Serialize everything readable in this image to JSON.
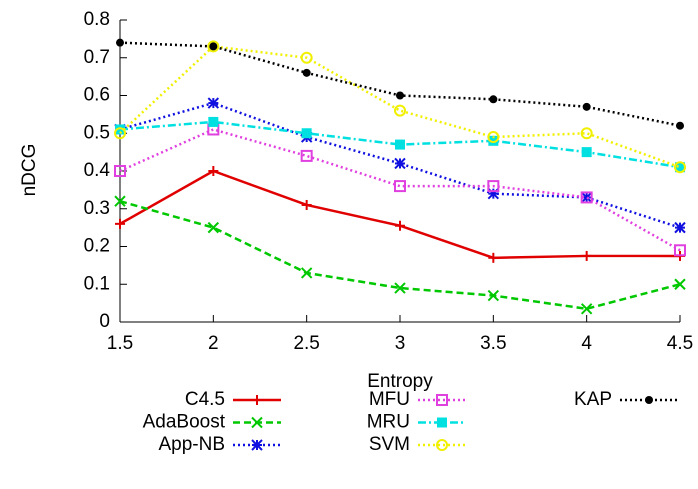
{
  "chart_data": {
    "type": "line",
    "x_label": "Entropy",
    "y_label": "nDCG",
    "x": [
      1.5,
      2,
      2.5,
      3,
      3.5,
      4,
      4.5
    ],
    "xlim": [
      1.5,
      4.5
    ],
    "xticks": [
      1.5,
      2,
      2.5,
      3,
      3.5,
      4,
      4.5
    ],
    "ylim": [
      0,
      0.8
    ],
    "yticks": [
      0,
      0.1,
      0.2,
      0.3,
      0.4,
      0.5,
      0.6,
      0.7,
      0.8
    ],
    "series": [
      {
        "name": "C4.5",
        "color": "#e00000",
        "marker": "plus",
        "dash": "solid",
        "values": [
          0.26,
          0.4,
          0.31,
          0.255,
          0.17,
          0.175,
          0.175
        ]
      },
      {
        "name": "AdaBoost",
        "color": "#00c800",
        "marker": "cross",
        "dash": "dashed",
        "values": [
          0.32,
          0.25,
          0.13,
          0.09,
          0.07,
          0.035,
          0.1
        ]
      },
      {
        "name": "App-NB",
        "color": "#1010e0",
        "marker": "star",
        "dash": "dotted",
        "values": [
          0.51,
          0.58,
          0.49,
          0.42,
          0.34,
          0.33,
          0.25
        ]
      },
      {
        "name": "MFU",
        "color": "#e040e0",
        "marker": "square",
        "dash": "dotted",
        "values": [
          0.4,
          0.51,
          0.44,
          0.36,
          0.36,
          0.33,
          0.19
        ]
      },
      {
        "name": "MRU",
        "color": "#00e0e0",
        "marker": "filled-square",
        "dash": "dashdot",
        "values": [
          0.51,
          0.53,
          0.5,
          0.47,
          0.48,
          0.45,
          0.41
        ]
      },
      {
        "name": "SVM",
        "color": "#f0f000",
        "marker": "circle",
        "dash": "dotted",
        "values": [
          0.5,
          0.73,
          0.7,
          0.56,
          0.49,
          0.5,
          0.41
        ]
      },
      {
        "name": "KAP",
        "color": "#000000",
        "marker": "filled-circle",
        "dash": "dotted",
        "values": [
          0.74,
          0.73,
          0.66,
          0.6,
          0.59,
          0.57,
          0.52
        ]
      }
    ]
  }
}
